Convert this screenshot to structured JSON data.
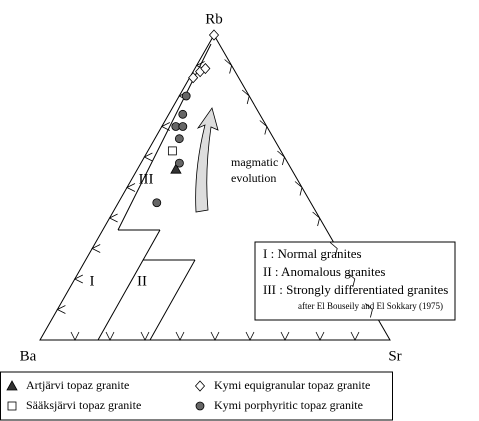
{
  "chart_data": {
    "type": "ternary",
    "apex_labels": {
      "top": "Rb",
      "left": "Ba",
      "right": "Sr"
    },
    "field_labels": [
      "I",
      "II",
      "III"
    ],
    "annotation": [
      "magmatic",
      "evolution"
    ],
    "field_legend": [
      "I   : Normal granites",
      "II  : Anomalous granites",
      "III : Strongly differentiated granites"
    ],
    "source": "after El Bouseily and El Sokkary (1975)",
    "series": [
      {
        "name": "Artjärvi topaz granite",
        "marker": "triangle",
        "color": "#333333",
        "values": [
          [
            56,
            33,
            11
          ]
        ]
      },
      {
        "name": "Kymi equigranular topaz granite",
        "marker": "diamond",
        "color": "#ffffff",
        "values": [
          [
            100,
            0,
            0
          ],
          [
            88,
            10,
            2
          ],
          [
            89,
            8,
            3
          ],
          [
            86,
            13,
            1
          ]
        ]
      },
      {
        "name": "Sääksjärvi topaz granite",
        "marker": "square",
        "color": "#ffffff",
        "values": [
          [
            62,
            31,
            7
          ]
        ]
      },
      {
        "name": "Kymi porphyritic topaz granite",
        "marker": "circle",
        "color": "#666666",
        "values": [
          [
            80,
            18,
            2
          ],
          [
            74,
            22,
            4
          ],
          [
            70,
            26,
            4
          ],
          [
            70,
            24,
            6
          ],
          [
            66,
            27,
            7
          ],
          [
            58,
            31,
            11
          ],
          [
            45,
            44,
            11
          ]
        ]
      }
    ]
  }
}
